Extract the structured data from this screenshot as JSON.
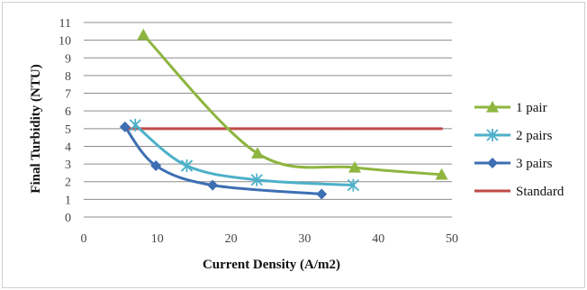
{
  "chart_data": {
    "type": "line",
    "title": "",
    "xlabel": "Current Density (A/m2)",
    "ylabel": "Final Turbidity  (NTU)",
    "xlim": [
      0,
      50
    ],
    "ylim": [
      0,
      11
    ],
    "xticks": [
      0,
      10,
      20,
      30,
      40,
      50
    ],
    "yticks": [
      0,
      1,
      2,
      3,
      4,
      5,
      6,
      7,
      8,
      9,
      10,
      11
    ],
    "grid": "horizontal",
    "legend_position": "right",
    "series": [
      {
        "name": "1 pair",
        "color": "#8db53f",
        "marker": "triangle",
        "x": [
          8.1,
          23.6,
          36.8,
          48.6
        ],
        "y": [
          10.3,
          3.6,
          2.8,
          2.4
        ]
      },
      {
        "name": "2 pairs",
        "color": "#4cb0c8",
        "marker": "asterisk",
        "x": [
          7.0,
          14.0,
          23.5,
          36.6
        ],
        "y": [
          5.2,
          2.9,
          2.1,
          1.8
        ]
      },
      {
        "name": "3 pairs",
        "color": "#3d6fb3",
        "marker": "diamond",
        "x": [
          5.6,
          9.8,
          17.5,
          32.3
        ],
        "y": [
          5.1,
          2.9,
          1.8,
          1.3
        ]
      },
      {
        "name": "Standard",
        "color": "#be4a47",
        "marker": "none",
        "x": [
          5.6,
          48.6
        ],
        "y": [
          5.0,
          5.0
        ]
      }
    ]
  }
}
